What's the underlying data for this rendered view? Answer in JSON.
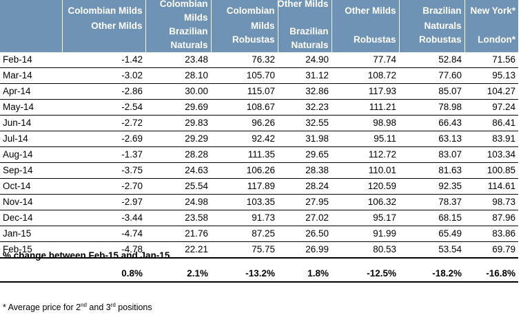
{
  "headers": [
    {
      "lines": [
        "Colombian Milds",
        "Other Milds"
      ]
    },
    {
      "lines": [
        "Colombian",
        "Milds",
        "Brazilian",
        "Naturals"
      ]
    },
    {
      "lines": [
        "Colombian",
        "Milds",
        "Robustas"
      ]
    },
    {
      "lines": [
        "Other Milds",
        "",
        "Brazilian",
        "Naturals"
      ]
    },
    {
      "lines": [
        "Other Milds",
        "",
        "Robustas"
      ]
    },
    {
      "lines": [
        "Brazilian",
        "Naturals",
        "Robustas"
      ]
    },
    {
      "lines": [
        "New York*",
        "",
        "London*"
      ]
    }
  ],
  "rows": [
    {
      "month": "Feb-14",
      "values": [
        "-1.42",
        "23.48",
        "76.32",
        "24.90",
        "77.74",
        "52.84",
        "71.56"
      ]
    },
    {
      "month": "Mar-14",
      "values": [
        "-3.02",
        "28.10",
        "105.70",
        "31.12",
        "108.72",
        "77.60",
        "95.13"
      ]
    },
    {
      "month": "Apr-14",
      "values": [
        "-2.86",
        "30.00",
        "115.07",
        "32.86",
        "117.93",
        "85.07",
        "104.27"
      ]
    },
    {
      "month": "May-14",
      "values": [
        "-2.54",
        "29.69",
        "108.67",
        "32.23",
        "111.21",
        "78.98",
        "97.24"
      ]
    },
    {
      "month": "Jun-14",
      "values": [
        "-2.72",
        "29.83",
        "96.26",
        "32.55",
        "98.98",
        "66.43",
        "86.41"
      ]
    },
    {
      "month": "Jul-14",
      "values": [
        "-2.69",
        "29.29",
        "92.42",
        "31.98",
        "95.11",
        "63.13",
        "83.91"
      ]
    },
    {
      "month": "Aug-14",
      "values": [
        "-1.37",
        "28.28",
        "111.35",
        "29.65",
        "112.72",
        "83.07",
        "103.34"
      ]
    },
    {
      "month": "Sep-14",
      "values": [
        "-3.75",
        "24.63",
        "106.26",
        "28.38",
        "110.01",
        "81.63",
        "100.85"
      ]
    },
    {
      "month": "Oct-14",
      "values": [
        "-2.70",
        "25.54",
        "117.89",
        "28.24",
        "120.59",
        "92.35",
        "114.61"
      ]
    },
    {
      "month": "Nov-14",
      "values": [
        "-2.97",
        "24.98",
        "103.35",
        "27.95",
        "106.32",
        "78.37",
        "98.73"
      ]
    },
    {
      "month": "Dec-14",
      "values": [
        "-3.44",
        "23.58",
        "91.73",
        "27.02",
        "95.17",
        "68.15",
        "87.96"
      ]
    },
    {
      "month": "Jan-15",
      "values": [
        "-4.74",
        "21.76",
        "87.25",
        "26.50",
        "91.99",
        "65.49",
        "83.86"
      ]
    },
    {
      "month": "Feb-15",
      "values": [
        "-4.78",
        "22.21",
        "75.75",
        "26.99",
        "80.53",
        "53.54",
        "69.79"
      ]
    }
  ],
  "change": {
    "title": "% change between Feb-15 and Jan-15",
    "values": [
      "0.8%",
      "2.1%",
      "-13.2%",
      "1.8%",
      "-12.5%",
      "-18.2%",
      "-16.8%"
    ]
  },
  "footnote": {
    "prefix": "* Average price for 2",
    "sup1": "nd",
    "middle": " and 3",
    "sup2": "rd",
    "suffix": " positions"
  }
}
